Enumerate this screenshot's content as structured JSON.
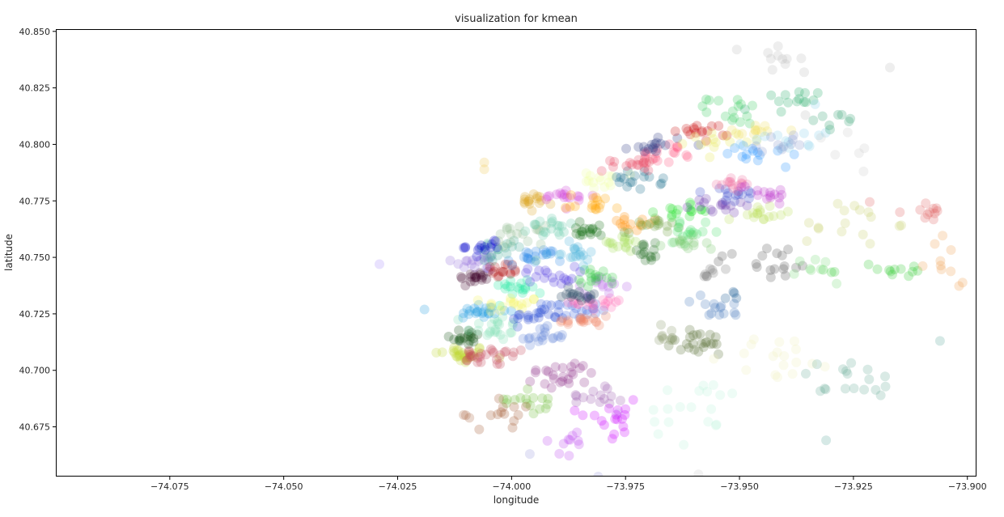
{
  "chart_data": {
    "type": "scatter",
    "title": "visualization for kmean",
    "xlabel": "longitude",
    "ylabel": "latitude",
    "xlim": [
      -74.1,
      -73.898
    ],
    "ylim": [
      40.653,
      40.851
    ],
    "x_ticks": [
      -74.075,
      -74.05,
      -74.025,
      -74.0,
      -73.975,
      -73.95,
      -73.925,
      -73.9
    ],
    "x_tick_labels": [
      "−74.075",
      "−74.050",
      "−74.025",
      "−74.000",
      "−73.975",
      "−73.950",
      "−73.925",
      "−73.900"
    ],
    "y_ticks": [
      40.675,
      40.7,
      40.725,
      40.75,
      40.775,
      40.8,
      40.825,
      40.85
    ],
    "y_tick_labels": [
      "40.675",
      "40.700",
      "40.725",
      "40.750",
      "40.775",
      "40.800",
      "40.825",
      "40.850"
    ],
    "grid": false,
    "point_alpha": 0.25,
    "outliers": [
      {
        "x": -74.029,
        "y": 40.747,
        "color": "#a78bfa"
      },
      {
        "x": -74.006,
        "y": 40.792,
        "color": "#f0c850"
      },
      {
        "x": -74.006,
        "y": 40.789,
        "color": "#f0c850"
      },
      {
        "x": -73.917,
        "y": 40.834,
        "color": "#bbbbbb"
      },
      {
        "x": -73.906,
        "y": 40.713,
        "color": "#5aa89a"
      },
      {
        "x": -73.931,
        "y": 40.669,
        "color": "#5aa89a"
      },
      {
        "x": -73.996,
        "y": 40.663,
        "color": "#9999dd"
      },
      {
        "x": -73.981,
        "y": 40.653,
        "color": "#9999dd"
      },
      {
        "x": -73.959,
        "y": 40.654,
        "color": "#cccccc"
      }
    ],
    "clusters": [
      {
        "x": -74.011,
        "y": 40.707,
        "sx": 0.003,
        "sy": 0.002,
        "n": 28,
        "color": "#bfd733"
      },
      {
        "x": -74.004,
        "y": 40.706,
        "sx": 0.004,
        "sy": 0.002,
        "n": 26,
        "color": "#c44256"
      },
      {
        "x": -74.01,
        "y": 40.715,
        "sx": 0.002,
        "sy": 0.002,
        "n": 18,
        "color": "#0b4d0b"
      },
      {
        "x": -74.004,
        "y": 40.719,
        "sx": 0.003,
        "sy": 0.003,
        "n": 22,
        "color": "#7fe0b2"
      },
      {
        "x": -74.007,
        "y": 40.726,
        "sx": 0.003,
        "sy": 0.002,
        "n": 22,
        "color": "#1e9ce0"
      },
      {
        "x": -74.008,
        "y": 40.741,
        "sx": 0.002,
        "sy": 0.002,
        "n": 18,
        "color": "#3a0028"
      },
      {
        "x": -74.007,
        "y": 40.748,
        "sx": 0.003,
        "sy": 0.002,
        "n": 18,
        "color": "#9370db"
      },
      {
        "x": -74.002,
        "y": 40.744,
        "sx": 0.002,
        "sy": 0.002,
        "n": 16,
        "color": "#b21b1b"
      },
      {
        "x": -73.998,
        "y": 40.737,
        "sx": 0.003,
        "sy": 0.002,
        "n": 18,
        "color": "#1fe6a0"
      },
      {
        "x": -74.0,
        "y": 40.729,
        "sx": 0.003,
        "sy": 0.002,
        "n": 16,
        "color": "#f5f55a"
      },
      {
        "x": -73.994,
        "y": 40.724,
        "sx": 0.003,
        "sy": 0.002,
        "n": 20,
        "color": "#1d3fd1"
      },
      {
        "x": -73.994,
        "y": 40.715,
        "sx": 0.003,
        "sy": 0.002,
        "n": 18,
        "color": "#5b7fd9"
      },
      {
        "x": -73.987,
        "y": 40.727,
        "sx": 0.003,
        "sy": 0.002,
        "n": 20,
        "color": "#4169e1"
      },
      {
        "x": -73.984,
        "y": 40.722,
        "sx": 0.003,
        "sy": 0.002,
        "n": 18,
        "color": "#f08060"
      },
      {
        "x": -73.98,
        "y": 40.73,
        "sx": 0.003,
        "sy": 0.002,
        "n": 18,
        "color": "#ff69b4"
      },
      {
        "x": -73.981,
        "y": 40.737,
        "sx": 0.003,
        "sy": 0.002,
        "n": 14,
        "color": "#b45fe6"
      },
      {
        "x": -73.985,
        "y": 40.734,
        "sx": 0.003,
        "sy": 0.002,
        "n": 16,
        "color": "#1e3f5a"
      },
      {
        "x": -73.981,
        "y": 40.741,
        "sx": 0.002,
        "sy": 0.002,
        "n": 16,
        "color": "#2ecc40"
      },
      {
        "x": -73.992,
        "y": 40.742,
        "sx": 0.003,
        "sy": 0.002,
        "n": 18,
        "color": "#4b32e0"
      },
      {
        "x": -73.995,
        "y": 40.75,
        "sx": 0.003,
        "sy": 0.002,
        "n": 20,
        "color": "#2b86e6"
      },
      {
        "x": -73.987,
        "y": 40.752,
        "sx": 0.003,
        "sy": 0.002,
        "n": 18,
        "color": "#4ab4dc"
      },
      {
        "x": -74.003,
        "y": 40.752,
        "sx": 0.003,
        "sy": 0.003,
        "n": 18,
        "color": "#44aa99"
      },
      {
        "x": -74.006,
        "y": 40.755,
        "sx": 0.002,
        "sy": 0.002,
        "n": 14,
        "color": "#0000cd"
      },
      {
        "x": -73.999,
        "y": 40.76,
        "sx": 0.003,
        "sy": 0.002,
        "n": 18,
        "color": "#8fbc8f"
      },
      {
        "x": -73.99,
        "y": 40.763,
        "sx": 0.003,
        "sy": 0.002,
        "n": 18,
        "color": "#66cdaa"
      },
      {
        "x": -73.983,
        "y": 40.762,
        "sx": 0.003,
        "sy": 0.002,
        "n": 16,
        "color": "#0e6b0e"
      },
      {
        "x": -73.995,
        "y": 40.774,
        "sx": 0.002,
        "sy": 0.002,
        "n": 16,
        "color": "#daa520"
      },
      {
        "x": -73.988,
        "y": 40.777,
        "sx": 0.003,
        "sy": 0.002,
        "n": 16,
        "color": "#d040d8"
      },
      {
        "x": -73.982,
        "y": 40.774,
        "sx": 0.003,
        "sy": 0.002,
        "n": 16,
        "color": "#ffa500"
      },
      {
        "x": -73.98,
        "y": 40.784,
        "sx": 0.002,
        "sy": 0.002,
        "n": 14,
        "color": "#f0ffa0"
      },
      {
        "x": -73.973,
        "y": 40.784,
        "sx": 0.003,
        "sy": 0.002,
        "n": 16,
        "color": "#116688"
      },
      {
        "x": -73.974,
        "y": 40.792,
        "sx": 0.003,
        "sy": 0.002,
        "n": 18,
        "color": "#e6405a"
      },
      {
        "x": -73.966,
        "y": 40.796,
        "sx": 0.003,
        "sy": 0.002,
        "n": 16,
        "color": "#ff4f7a"
      },
      {
        "x": -73.968,
        "y": 40.8,
        "sx": 0.003,
        "sy": 0.002,
        "n": 16,
        "color": "#283480"
      },
      {
        "x": -73.958,
        "y": 40.806,
        "sx": 0.003,
        "sy": 0.002,
        "n": 16,
        "color": "#cc1111"
      },
      {
        "x": -73.955,
        "y": 40.802,
        "sx": 0.003,
        "sy": 0.002,
        "n": 14,
        "color": "#e6e655"
      },
      {
        "x": -73.951,
        "y": 40.815,
        "sx": 0.003,
        "sy": 0.003,
        "n": 16,
        "color": "#32cd5a"
      },
      {
        "x": -73.946,
        "y": 40.806,
        "sx": 0.003,
        "sy": 0.002,
        "n": 12,
        "color": "#f0e060"
      },
      {
        "x": -73.941,
        "y": 40.818,
        "sx": 0.004,
        "sy": 0.003,
        "n": 14,
        "color": "#22aa66"
      },
      {
        "x": -73.941,
        "y": 40.834,
        "sx": 0.004,
        "sy": 0.007,
        "n": 12,
        "color": "#bbbbbb"
      },
      {
        "x": -73.974,
        "y": 40.765,
        "sx": 0.003,
        "sy": 0.002,
        "n": 14,
        "color": "#ff8c00"
      },
      {
        "x": -73.976,
        "y": 40.756,
        "sx": 0.003,
        "sy": 0.002,
        "n": 16,
        "color": "#a6e05a"
      },
      {
        "x": -73.97,
        "y": 40.752,
        "sx": 0.002,
        "sy": 0.002,
        "n": 14,
        "color": "#1f6b1f"
      },
      {
        "x": -73.969,
        "y": 40.765,
        "sx": 0.003,
        "sy": 0.002,
        "n": 16,
        "color": "#6b9f3a"
      },
      {
        "x": -73.962,
        "y": 40.771,
        "sx": 0.003,
        "sy": 0.002,
        "n": 16,
        "color": "#1ee028"
      },
      {
        "x": -73.96,
        "y": 40.761,
        "sx": 0.003,
        "sy": 0.002,
        "n": 16,
        "color": "#44e066"
      },
      {
        "x": -73.963,
        "y": 40.755,
        "sx": 0.003,
        "sy": 0.002,
        "n": 14,
        "color": "#77c86a"
      },
      {
        "x": -73.955,
        "y": 40.773,
        "sx": 0.003,
        "sy": 0.002,
        "n": 16,
        "color": "#6633aa"
      },
      {
        "x": -73.951,
        "y": 40.777,
        "sx": 0.003,
        "sy": 0.002,
        "n": 14,
        "color": "#3344cc"
      },
      {
        "x": -73.952,
        "y": 40.783,
        "sx": 0.003,
        "sy": 0.002,
        "n": 14,
        "color": "#ee6fa0"
      },
      {
        "x": -73.944,
        "y": 40.779,
        "sx": 0.003,
        "sy": 0.002,
        "n": 14,
        "color": "#bb33cc"
      },
      {
        "x": -73.946,
        "y": 40.769,
        "sx": 0.003,
        "sy": 0.002,
        "n": 16,
        "color": "#bde05a"
      },
      {
        "x": -73.945,
        "y": 40.796,
        "sx": 0.004,
        "sy": 0.003,
        "n": 14,
        "color": "#1e90ff"
      },
      {
        "x": -73.94,
        "y": 40.804,
        "sx": 0.004,
        "sy": 0.004,
        "n": 14,
        "color": "#87ceeb"
      },
      {
        "x": -73.94,
        "y": 40.8,
        "sx": 0.004,
        "sy": 0.003,
        "n": 10,
        "color": "#8899cc"
      },
      {
        "x": -73.928,
        "y": 40.811,
        "sx": 0.003,
        "sy": 0.002,
        "n": 8,
        "color": "#2e9e6e"
      },
      {
        "x": -73.923,
        "y": 40.795,
        "sx": 0.004,
        "sy": 0.006,
        "n": 6,
        "color": "#cccccc"
      },
      {
        "x": -73.944,
        "y": 40.748,
        "sx": 0.006,
        "sy": 0.004,
        "n": 18,
        "color": "#555555"
      },
      {
        "x": -73.957,
        "y": 40.744,
        "sx": 0.003,
        "sy": 0.002,
        "n": 8,
        "color": "#777777"
      },
      {
        "x": -73.926,
        "y": 40.765,
        "sx": 0.005,
        "sy": 0.005,
        "n": 16,
        "color": "#c8d06a"
      },
      {
        "x": -73.916,
        "y": 40.744,
        "sx": 0.005,
        "sy": 0.002,
        "n": 14,
        "color": "#32cd32"
      },
      {
        "x": -73.933,
        "y": 40.744,
        "sx": 0.003,
        "sy": 0.003,
        "n": 8,
        "color": "#77dd77"
      },
      {
        "x": -73.912,
        "y": 40.77,
        "sx": 0.004,
        "sy": 0.004,
        "n": 12,
        "color": "#e06060"
      },
      {
        "x": -73.903,
        "y": 40.75,
        "sx": 0.003,
        "sy": 0.007,
        "n": 10,
        "color": "#f0a050"
      },
      {
        "x": -73.955,
        "y": 40.727,
        "sx": 0.003,
        "sy": 0.003,
        "n": 14,
        "color": "#4477bb"
      },
      {
        "x": -73.952,
        "y": 40.732,
        "sx": 0.002,
        "sy": 0.002,
        "n": 4,
        "color": "#11558f"
      },
      {
        "x": -73.959,
        "y": 40.712,
        "sx": 0.004,
        "sy": 0.003,
        "n": 24,
        "color": "#556b2f"
      },
      {
        "x": -73.966,
        "y": 40.716,
        "sx": 0.002,
        "sy": 0.002,
        "n": 8,
        "color": "#889966"
      },
      {
        "x": -73.941,
        "y": 40.706,
        "sx": 0.006,
        "sy": 0.005,
        "n": 18,
        "color": "#eeeebb"
      },
      {
        "x": -73.926,
        "y": 40.695,
        "sx": 0.006,
        "sy": 0.005,
        "n": 18,
        "color": "#66aa99"
      },
      {
        "x": -73.958,
        "y": 40.682,
        "sx": 0.007,
        "sy": 0.007,
        "n": 20,
        "color": "#bbf5dd"
      },
      {
        "x": -73.989,
        "y": 40.698,
        "sx": 0.004,
        "sy": 0.003,
        "n": 24,
        "color": "#8b2a88"
      },
      {
        "x": -73.981,
        "y": 40.69,
        "sx": 0.003,
        "sy": 0.003,
        "n": 14,
        "color": "#9955aa"
      },
      {
        "x": -73.995,
        "y": 40.687,
        "sx": 0.003,
        "sy": 0.003,
        "n": 16,
        "color": "#6bbb33"
      },
      {
        "x": -74.001,
        "y": 40.681,
        "sx": 0.003,
        "sy": 0.003,
        "n": 12,
        "color": "#a0522d"
      },
      {
        "x": -73.979,
        "y": 40.679,
        "sx": 0.004,
        "sy": 0.004,
        "n": 18,
        "color": "#cc00ff"
      },
      {
        "x": -73.987,
        "y": 40.669,
        "sx": 0.003,
        "sy": 0.003,
        "n": 10,
        "color": "#bb44ee"
      },
      {
        "x": -74.01,
        "y": 40.68,
        "sx": 0.002,
        "sy": 0.001,
        "n": 3,
        "color": "#aa6644"
      }
    ]
  }
}
